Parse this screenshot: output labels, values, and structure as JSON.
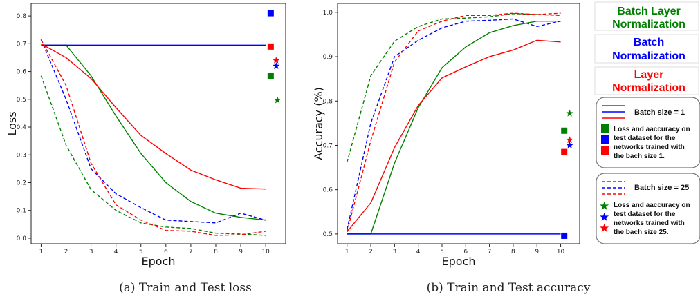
{
  "captions": {
    "a": "(a) Train and Test loss",
    "b": "(b) Train and Test accuracy"
  },
  "legend": {
    "norm_titles": [
      {
        "text1": "Batch Layer",
        "text2": "Normalization",
        "color": "#008000"
      },
      {
        "text1": "Batch",
        "text2": "Normalization",
        "color": "#0000ff"
      },
      {
        "text1": "Layer",
        "text2": "Normalization",
        "color": "#ff0000"
      }
    ],
    "box1": {
      "title": "Batch size = 1",
      "lines": [
        "Loss and aaccuracy on",
        "test dataset for the",
        "networks trained with",
        "the bach size 1."
      ]
    },
    "box2": {
      "title": "Batch size = 25",
      "lines": [
        "Loss and aaccuracy on",
        "test dataset for the",
        "networks trained with",
        "the bach size 25."
      ]
    }
  },
  "colors": {
    "batch_layer": "#008000",
    "batch": "#0000ff",
    "layer": "#ff0000"
  },
  "chart_data": [
    {
      "type": "line",
      "xlabel": "Epoch",
      "ylabel": "Loss",
      "x": [
        1,
        2,
        3,
        4,
        5,
        6,
        7,
        8,
        9,
        10
      ],
      "xlim": [
        0.6,
        10.8
      ],
      "ylim": [
        -0.02,
        0.845
      ],
      "yticks": [
        0.0,
        0.1,
        0.2,
        0.3,
        0.4,
        0.5,
        0.6,
        0.7,
        0.8
      ],
      "series": [
        {
          "color": "#008000",
          "style": "solid",
          "values": [
            0.695,
            0.695,
            0.585,
            0.44,
            0.305,
            0.2,
            0.132,
            0.09,
            0.075,
            0.065
          ]
        },
        {
          "color": "#0000ff",
          "style": "solid",
          "values": [
            0.695,
            0.695,
            0.695,
            0.695,
            0.695,
            0.695,
            0.695,
            0.695,
            0.695,
            0.695
          ]
        },
        {
          "color": "#ff0000",
          "style": "solid",
          "values": [
            0.7,
            0.65,
            0.575,
            0.47,
            0.37,
            0.305,
            0.245,
            0.21,
            0.18,
            0.177
          ]
        },
        {
          "color": "#008000",
          "style": "dashed",
          "values": [
            0.585,
            0.335,
            0.175,
            0.1,
            0.055,
            0.04,
            0.035,
            0.018,
            0.015,
            0.01
          ]
        },
        {
          "color": "#0000ff",
          "style": "dashed",
          "values": [
            0.715,
            0.5,
            0.25,
            0.16,
            0.11,
            0.065,
            0.06,
            0.055,
            0.09,
            0.065
          ]
        },
        {
          "color": "#ff0000",
          "style": "dashed",
          "values": [
            0.715,
            0.55,
            0.27,
            0.12,
            0.065,
            0.028,
            0.025,
            0.01,
            0.012,
            0.025
          ]
        }
      ],
      "test_points": [
        {
          "color": "#0000ff",
          "marker": "square",
          "x": 10.2,
          "y": 0.81
        },
        {
          "color": "#ff0000",
          "marker": "square",
          "x": 10.2,
          "y": 0.69
        },
        {
          "color": "#008000",
          "marker": "square",
          "x": 10.2,
          "y": 0.583
        },
        {
          "color": "#ff0000",
          "marker": "star",
          "x": 10.42,
          "y": 0.64
        },
        {
          "color": "#0000ff",
          "marker": "star",
          "x": 10.42,
          "y": 0.62
        },
        {
          "color": "#008000",
          "marker": "star",
          "x": 10.47,
          "y": 0.497
        }
      ]
    },
    {
      "type": "line",
      "xlabel": "Epoch",
      "ylabel": "Accuracy  (%)",
      "x": [
        1,
        2,
        3,
        4,
        5,
        6,
        7,
        8,
        9,
        10
      ],
      "xlim": [
        0.6,
        10.8
      ],
      "ylim": [
        0.478,
        1.02
      ],
      "yticks": [
        0.5,
        0.6,
        0.7,
        0.8,
        0.9,
        1.0
      ],
      "series": [
        {
          "color": "#008000",
          "style": "solid",
          "values": [
            0.5,
            0.5,
            0.66,
            0.785,
            0.875,
            0.922,
            0.954,
            0.97,
            0.98,
            0.98
          ]
        },
        {
          "color": "#0000ff",
          "style": "solid",
          "values": [
            0.5,
            0.5,
            0.5,
            0.5,
            0.5,
            0.5,
            0.5,
            0.5,
            0.5,
            0.5
          ]
        },
        {
          "color": "#ff0000",
          "style": "solid",
          "values": [
            0.505,
            0.57,
            0.695,
            0.79,
            0.852,
            0.877,
            0.9,
            0.915,
            0.937,
            0.933
          ]
        },
        {
          "color": "#008000",
          "style": "dashed",
          "values": [
            0.662,
            0.857,
            0.935,
            0.968,
            0.985,
            0.987,
            0.99,
            0.997,
            0.995,
            0.993
          ]
        },
        {
          "color": "#0000ff",
          "style": "dashed",
          "values": [
            0.51,
            0.75,
            0.9,
            0.937,
            0.965,
            0.98,
            0.982,
            0.985,
            0.968,
            0.98
          ]
        },
        {
          "color": "#ff0000",
          "style": "dashed",
          "values": [
            0.505,
            0.71,
            0.888,
            0.958,
            0.98,
            0.993,
            0.993,
            0.998,
            0.995,
            0.998
          ]
        }
      ],
      "test_points": [
        {
          "color": "#008000",
          "marker": "square",
          "x": 10.15,
          "y": 0.733
        },
        {
          "color": "#ff0000",
          "marker": "square",
          "x": 10.15,
          "y": 0.685
        },
        {
          "color": "#0000ff",
          "marker": "square",
          "x": 10.15,
          "y": 0.496
        },
        {
          "color": "#008000",
          "marker": "star",
          "x": 10.38,
          "y": 0.772
        },
        {
          "color": "#ff0000",
          "marker": "star",
          "x": 10.38,
          "y": 0.712
        },
        {
          "color": "#0000ff",
          "marker": "star",
          "x": 10.38,
          "y": 0.7
        }
      ]
    }
  ]
}
